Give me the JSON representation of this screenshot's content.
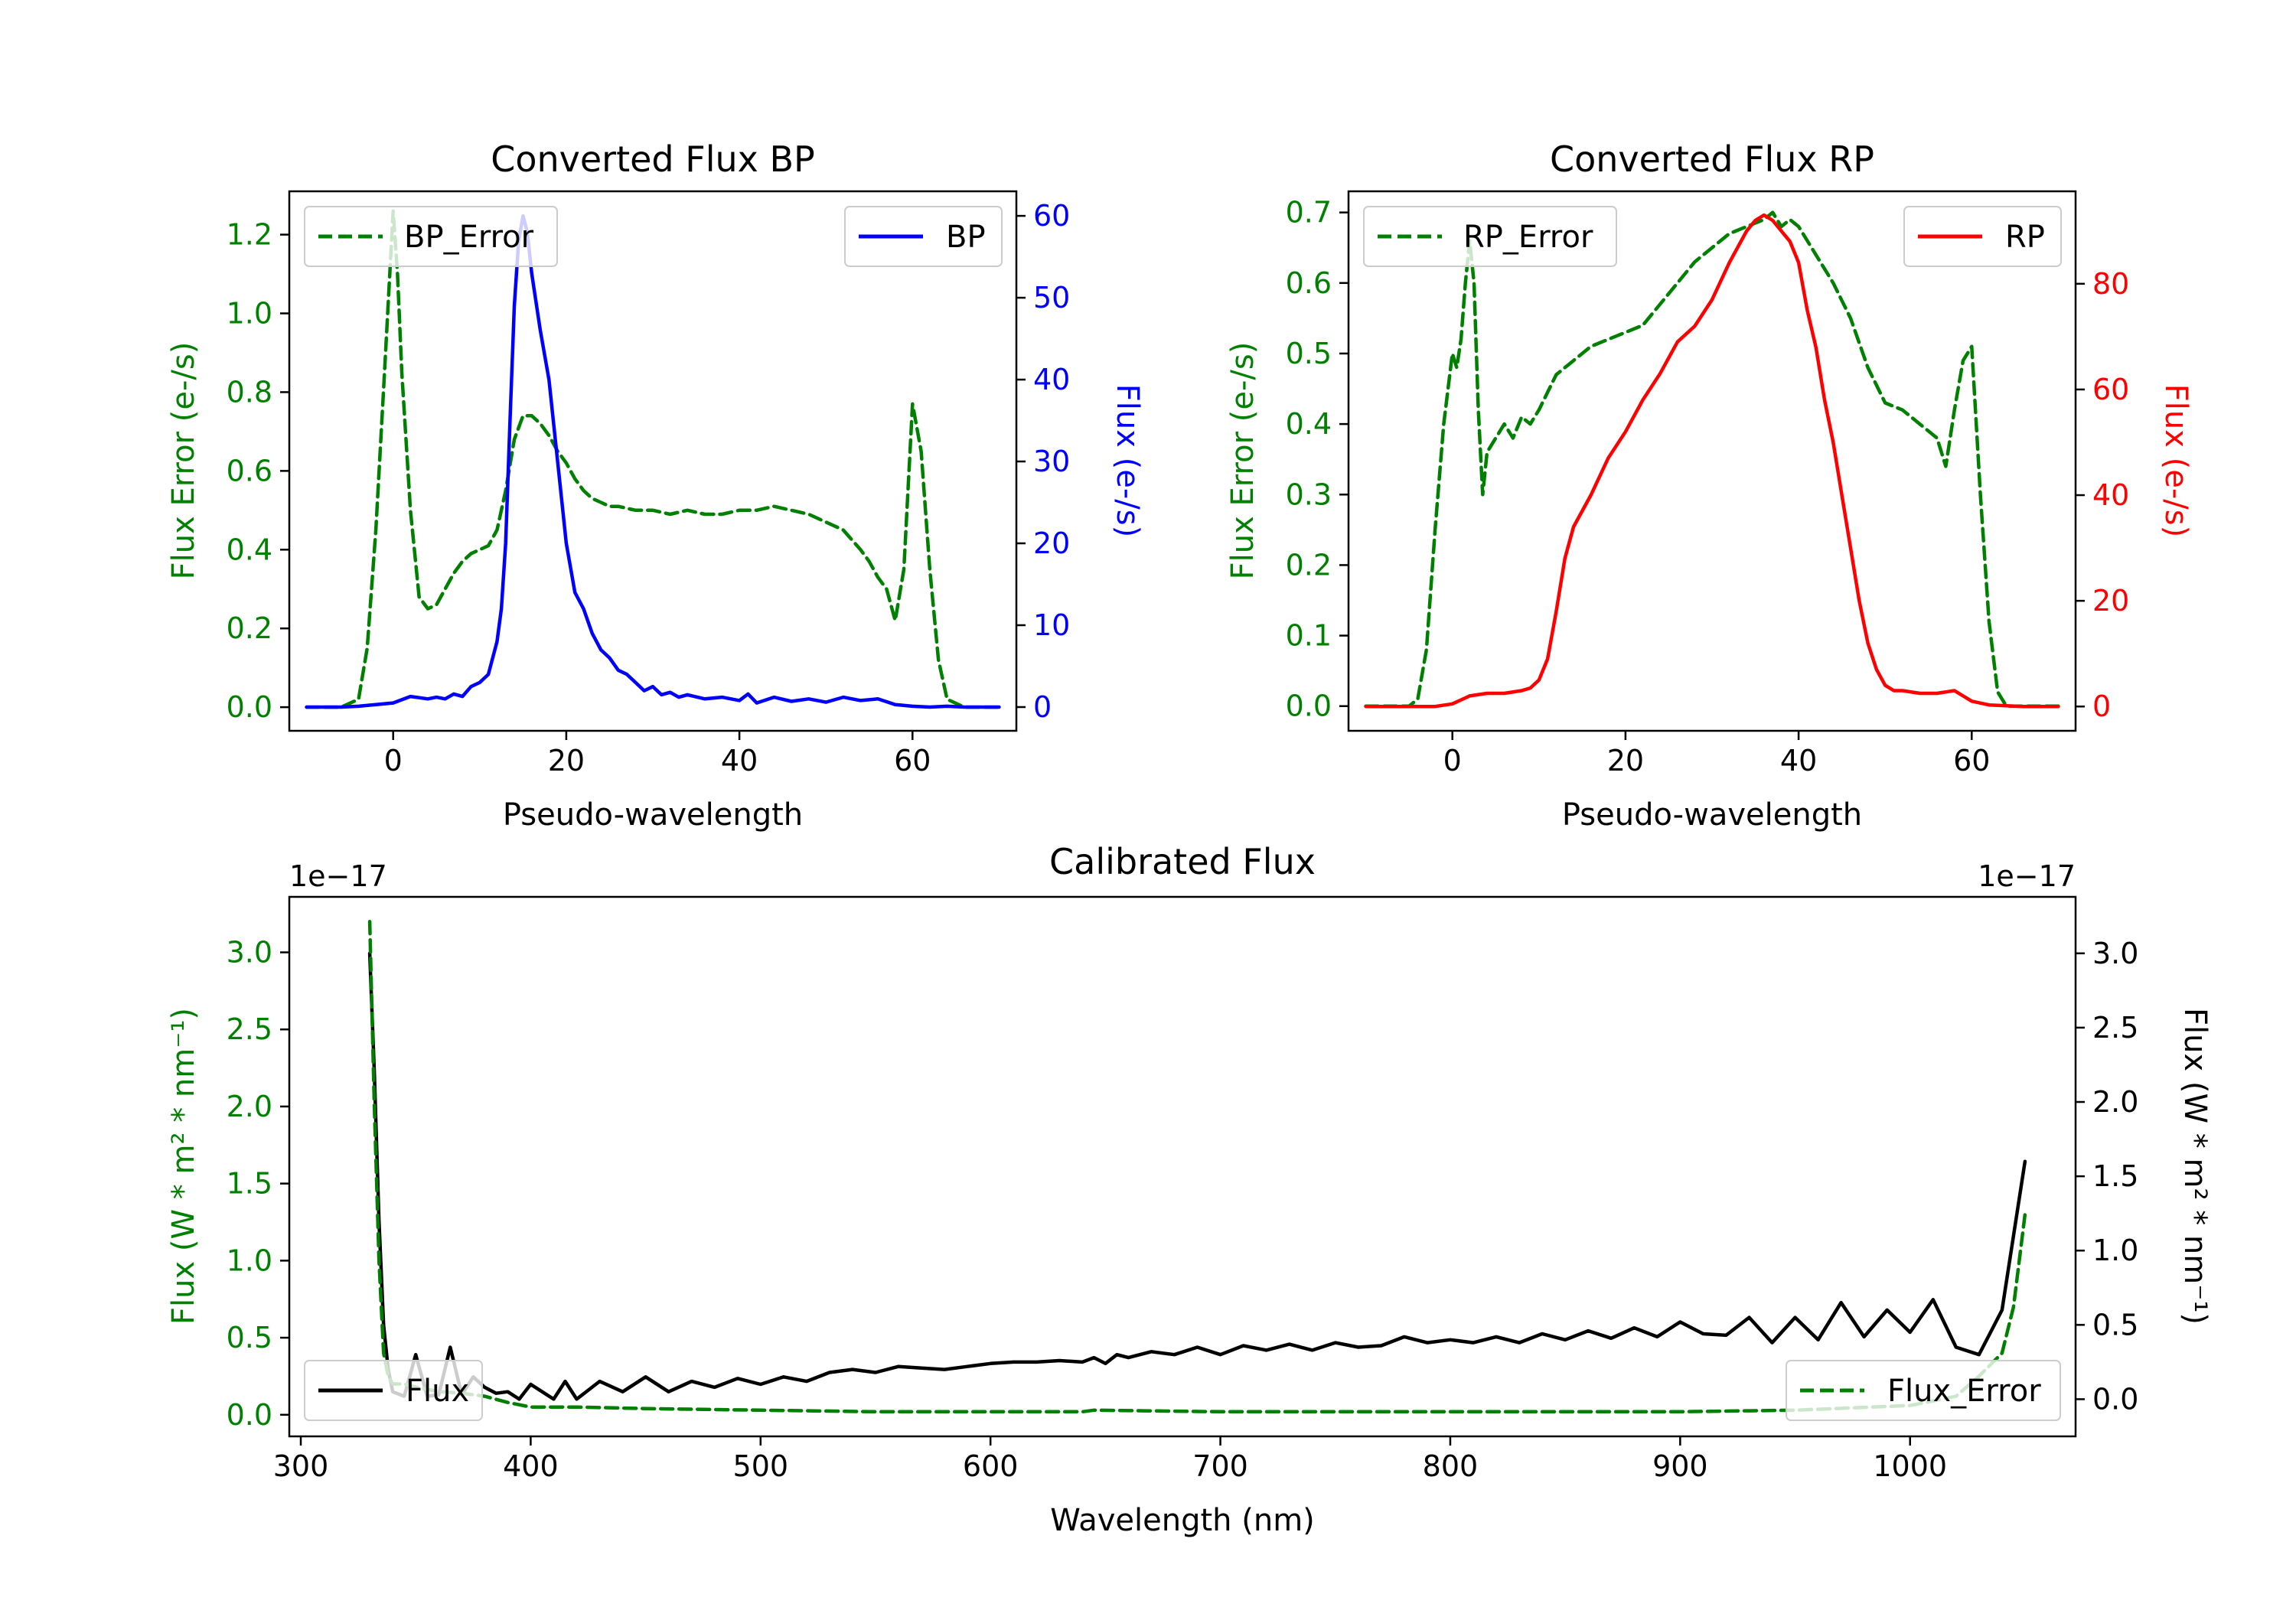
{
  "chart_data": [
    {
      "id": "bp",
      "type": "line",
      "title": "Converted Flux BP",
      "xlabel": "Pseudo-wavelength",
      "xlim": [
        -12,
        72
      ],
      "xticks": [
        0,
        20,
        40,
        60
      ],
      "left_axis": {
        "label": "Flux Error (e-/s)",
        "color": "#008000",
        "ylim": [
          -0.06,
          1.31
        ],
        "ticks": [
          0.0,
          0.2,
          0.4,
          0.6,
          0.8,
          1.0,
          1.2
        ],
        "tick_labels": [
          "0.0",
          "0.2",
          "0.4",
          "0.6",
          "0.8",
          "1.0",
          "1.2"
        ]
      },
      "right_axis": {
        "label": "Flux (e-/s)",
        "color": "#0000ff",
        "ylim": [
          -2.9,
          63.0
        ],
        "ticks": [
          0,
          10,
          20,
          30,
          40,
          50,
          60
        ],
        "tick_labels": [
          "0",
          "10",
          "20",
          "30",
          "40",
          "50",
          "60"
        ]
      },
      "series": [
        {
          "name": "BP_Error",
          "axis": "left",
          "color": "#008000",
          "dash": true,
          "legend": "top-left",
          "x": [
            -10,
            -6,
            -4,
            -3,
            -2,
            -1,
            0,
            0.5,
            1,
            2,
            3,
            4,
            5,
            6,
            7,
            8,
            9,
            10,
            11,
            12,
            13,
            14,
            15,
            16,
            17,
            18,
            19,
            20,
            21,
            22,
            23,
            24,
            25,
            26,
            28,
            30,
            32,
            34,
            36,
            38,
            40,
            42,
            44,
            46,
            48,
            50,
            52,
            54,
            55,
            56,
            57,
            58,
            59,
            60,
            61,
            62,
            63,
            64,
            66,
            70
          ],
          "y": [
            0,
            0,
            0.02,
            0.15,
            0.45,
            0.85,
            1.26,
            1.1,
            0.85,
            0.5,
            0.28,
            0.25,
            0.26,
            0.3,
            0.34,
            0.37,
            0.39,
            0.4,
            0.41,
            0.45,
            0.55,
            0.68,
            0.74,
            0.74,
            0.72,
            0.69,
            0.65,
            0.62,
            0.58,
            0.55,
            0.53,
            0.52,
            0.51,
            0.51,
            0.5,
            0.5,
            0.49,
            0.5,
            0.49,
            0.49,
            0.5,
            0.5,
            0.51,
            0.5,
            0.49,
            0.47,
            0.45,
            0.4,
            0.37,
            0.33,
            0.3,
            0.22,
            0.35,
            0.77,
            0.65,
            0.35,
            0.12,
            0.02,
            0.0,
            0.0
          ]
        },
        {
          "name": "BP",
          "axis": "right",
          "color": "#0000ff",
          "dash": false,
          "legend": "top-right",
          "x": [
            -10,
            -6,
            -4,
            -2,
            0,
            2,
            4,
            5,
            6,
            7,
            8,
            9,
            10,
            11,
            12,
            12.5,
            13,
            13.5,
            14,
            14.5,
            15,
            15.5,
            16,
            17,
            18,
            19,
            20,
            21,
            22,
            23,
            24,
            25,
            26,
            27,
            28,
            29,
            30,
            31,
            32,
            33,
            34,
            36,
            38,
            40,
            41,
            42,
            44,
            46,
            48,
            50,
            52,
            54,
            56,
            58,
            60,
            62,
            64,
            66,
            70
          ],
          "y": [
            0,
            0,
            0.1,
            0.3,
            0.5,
            1.3,
            1.0,
            1.2,
            1.0,
            1.6,
            1.3,
            2.5,
            3,
            4,
            8,
            12,
            20,
            35,
            49,
            57,
            60,
            58,
            53,
            46,
            40,
            30,
            20,
            14,
            12,
            9,
            7,
            6,
            4.5,
            4,
            3,
            2,
            2.5,
            1.5,
            1.8,
            1.2,
            1.5,
            1,
            1.2,
            0.8,
            1.6,
            0.5,
            1.2,
            0.7,
            1.0,
            0.6,
            1.2,
            0.8,
            1.0,
            0.3,
            0.1,
            0.0,
            0.1,
            0.0,
            0.0
          ]
        }
      ]
    },
    {
      "id": "rp",
      "type": "line",
      "title": "Converted Flux RP",
      "xlabel": "Pseudo-wavelength",
      "xlim": [
        -12,
        72
      ],
      "xticks": [
        0,
        20,
        40,
        60
      ],
      "left_axis": {
        "label": "Flux Error (e-/s)",
        "color": "#008000",
        "ylim": [
          -0.035,
          0.73
        ],
        "ticks": [
          0.0,
          0.1,
          0.2,
          0.3,
          0.4,
          0.5,
          0.6,
          0.7
        ],
        "tick_labels": [
          "0.0",
          "0.1",
          "0.2",
          "0.3",
          "0.4",
          "0.5",
          "0.6",
          "0.7"
        ]
      },
      "right_axis": {
        "label": "Flux (e-/s)",
        "color": "#ff0000",
        "ylim": [
          -4.6,
          97.5
        ],
        "ticks": [
          0,
          20,
          40,
          60,
          80
        ],
        "tick_labels": [
          "0",
          "20",
          "40",
          "60",
          "80"
        ]
      },
      "series": [
        {
          "name": "RP_Error",
          "axis": "left",
          "color": "#008000",
          "dash": true,
          "legend": "top-left",
          "x": [
            -10,
            -5,
            -4,
            -3,
            -2,
            -1,
            0,
            0.5,
            1,
            1.5,
            2,
            2.5,
            3,
            3.5,
            4,
            5,
            6,
            7,
            8,
            9,
            10,
            12,
            13,
            14,
            16,
            18,
            20,
            22,
            24,
            26,
            28,
            30,
            32,
            34,
            36,
            37,
            38,
            39,
            40,
            41,
            42,
            44,
            46,
            48,
            50,
            52,
            53,
            54,
            55,
            56,
            57,
            58,
            59,
            60,
            61,
            62,
            63,
            64,
            66,
            70
          ],
          "y": [
            0,
            0,
            0.01,
            0.08,
            0.25,
            0.4,
            0.5,
            0.48,
            0.52,
            0.6,
            0.66,
            0.6,
            0.42,
            0.3,
            0.36,
            0.38,
            0.4,
            0.38,
            0.41,
            0.4,
            0.42,
            0.47,
            0.48,
            0.49,
            0.51,
            0.52,
            0.53,
            0.54,
            0.57,
            0.6,
            0.63,
            0.65,
            0.67,
            0.68,
            0.69,
            0.7,
            0.68,
            0.69,
            0.68,
            0.66,
            0.64,
            0.6,
            0.55,
            0.48,
            0.43,
            0.42,
            0.41,
            0.4,
            0.39,
            0.38,
            0.34,
            0.42,
            0.49,
            0.51,
            0.3,
            0.12,
            0.02,
            0.0,
            0.0,
            0.0
          ]
        },
        {
          "name": "RP",
          "axis": "right",
          "color": "#ff0000",
          "dash": false,
          "legend": "top-right",
          "x": [
            -10,
            -5,
            -2,
            0,
            2,
            4,
            6,
            8,
            9,
            10,
            11,
            12,
            13,
            14,
            16,
            18,
            20,
            22,
            24,
            26,
            28,
            30,
            32,
            34,
            35,
            36,
            37,
            38,
            39,
            40,
            41,
            42,
            43,
            44,
            45,
            46,
            47,
            48,
            49,
            50,
            51,
            52,
            54,
            56,
            58,
            60,
            62,
            66,
            70
          ],
          "y": [
            0,
            0,
            0,
            0.5,
            2,
            2.5,
            2.5,
            3,
            3.5,
            5,
            9,
            18,
            28,
            34,
            40,
            47,
            52,
            58,
            63,
            69,
            72,
            77,
            84,
            90,
            92,
            93,
            92,
            90,
            88,
            84,
            75,
            68,
            58,
            50,
            40,
            30,
            20,
            12,
            7,
            4,
            3,
            3,
            2.5,
            2.5,
            3,
            1,
            0.3,
            0,
            0
          ]
        }
      ]
    },
    {
      "id": "calibrated",
      "type": "line",
      "title": "Calibrated Flux",
      "xlabel": "Wavelength (nm)",
      "xlim": [
        295,
        1072
      ],
      "xticks": [
        300,
        400,
        500,
        600,
        700,
        800,
        900,
        1000
      ],
      "left_axis": {
        "label": "Flux (W * m² * nm⁻¹)",
        "color": "#008000",
        "ylim": [
          -0.14,
          3.36
        ],
        "offset_text": "1e−17",
        "ticks": [
          0.0,
          0.5,
          1.0,
          1.5,
          2.0,
          2.5,
          3.0
        ],
        "tick_labels": [
          "0.0",
          "0.5",
          "1.0",
          "1.5",
          "2.0",
          "2.5",
          "3.0"
        ]
      },
      "right_axis": {
        "label": "Flux (W * m² * nm⁻¹)",
        "color": "#000000",
        "ylim": [
          -0.25,
          3.38
        ],
        "offset_text": "1e−17",
        "ticks": [
          0.0,
          0.5,
          1.0,
          1.5,
          2.0,
          2.5,
          3.0
        ],
        "tick_labels": [
          "0.0",
          "0.5",
          "1.0",
          "1.5",
          "2.0",
          "2.5",
          "3.0"
        ]
      },
      "series": [
        {
          "name": "Flux",
          "axis": "right",
          "color": "#000000",
          "dash": false,
          "legend": "lower-left",
          "x": [
            330,
            332,
            334,
            336,
            338,
            340,
            345,
            350,
            355,
            360,
            365,
            370,
            375,
            380,
            385,
            390,
            395,
            400,
            405,
            410,
            415,
            420,
            430,
            440,
            450,
            460,
            470,
            480,
            490,
            500,
            510,
            520,
            530,
            540,
            550,
            560,
            570,
            580,
            590,
            600,
            610,
            620,
            630,
            640,
            645,
            650,
            655,
            660,
            670,
            680,
            690,
            700,
            710,
            720,
            730,
            740,
            750,
            760,
            770,
            780,
            790,
            800,
            810,
            820,
            830,
            840,
            850,
            860,
            870,
            880,
            890,
            900,
            910,
            920,
            930,
            940,
            950,
            960,
            970,
            980,
            990,
            1000,
            1010,
            1020,
            1030,
            1035,
            1040,
            1045,
            1050
          ],
          "y": [
            3.0,
            2.2,
            1.2,
            0.5,
            0.2,
            0.05,
            0.02,
            0.3,
            0.02,
            0.03,
            0.35,
            0.03,
            0.15,
            0.08,
            0.04,
            0.05,
            0.0,
            0.1,
            0.05,
            0.0,
            0.12,
            0.0,
            0.12,
            0.05,
            0.15,
            0.05,
            0.12,
            0.08,
            0.14,
            0.1,
            0.15,
            0.12,
            0.18,
            0.2,
            0.18,
            0.22,
            0.21,
            0.2,
            0.22,
            0.24,
            0.25,
            0.25,
            0.26,
            0.25,
            0.28,
            0.24,
            0.3,
            0.28,
            0.32,
            0.3,
            0.35,
            0.3,
            0.36,
            0.33,
            0.37,
            0.33,
            0.38,
            0.35,
            0.36,
            0.42,
            0.38,
            0.4,
            0.38,
            0.42,
            0.38,
            0.44,
            0.4,
            0.46,
            0.41,
            0.48,
            0.42,
            0.52,
            0.44,
            0.43,
            0.55,
            0.38,
            0.55,
            0.4,
            0.65,
            0.42,
            0.6,
            0.45,
            0.67,
            0.35,
            0.3,
            0.45,
            0.6,
            1.1,
            1.6
          ]
        },
        {
          "name": "Flux_Error",
          "axis": "left",
          "color": "#008000",
          "dash": true,
          "legend": "lower-right",
          "x": [
            330,
            332,
            334,
            336,
            338,
            340,
            345,
            350,
            360,
            370,
            380,
            390,
            400,
            420,
            450,
            500,
            550,
            600,
            640,
            645,
            700,
            800,
            900,
            950,
            1000,
            1020,
            1030,
            1040,
            1045,
            1050
          ],
          "y": [
            3.2,
            2.0,
            1.0,
            0.4,
            0.25,
            0.2,
            0.2,
            0.18,
            0.15,
            0.14,
            0.12,
            0.08,
            0.05,
            0.05,
            0.04,
            0.03,
            0.02,
            0.02,
            0.02,
            0.03,
            0.02,
            0.02,
            0.02,
            0.03,
            0.06,
            0.12,
            0.25,
            0.4,
            0.7,
            1.3
          ]
        }
      ]
    }
  ]
}
